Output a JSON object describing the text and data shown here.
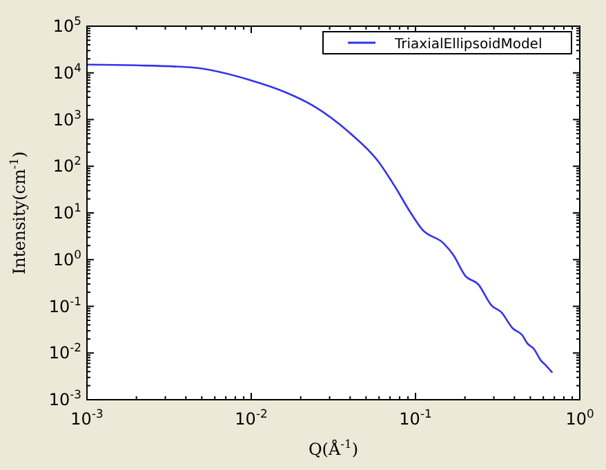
{
  "chart_data": {
    "type": "line",
    "xlabel": "Q(Å$^{-1}$)",
    "ylabel": "Intensity(cm$^{-1}$)",
    "log": "xy",
    "legend": "top right",
    "line_style": "solid",
    "marker": "none",
    "grid": false,
    "xlim": [
      0.001,
      1
    ],
    "ylim": [
      0.001,
      100000
    ],
    "xticks": [
      {
        "value": 0.001,
        "label": "10$^{-3}$"
      },
      {
        "value": 0.01,
        "label": "10$^{-2}$"
      },
      {
        "value": 0.1,
        "label": "10$^{-1}$"
      },
      {
        "value": 1,
        "label": "10$^{0}$"
      }
    ],
    "yticks": [
      {
        "value": 0.001,
        "label": "10$^{-3}$"
      },
      {
        "value": 0.01,
        "label": "10$^{-2}$"
      },
      {
        "value": 0.1,
        "label": "10$^{-1}$"
      },
      {
        "value": 1,
        "label": "10$^{0}$"
      },
      {
        "value": 10,
        "label": "10$^{1}$"
      },
      {
        "value": 100,
        "label": "10$^{2}$"
      },
      {
        "value": 1000,
        "label": "10$^{3}$"
      },
      {
        "value": 10000,
        "label": "10$^{4}$"
      },
      {
        "value": 100000,
        "label": "10$^{5}$"
      }
    ],
    "series": [
      {
        "name": "TriaxialEllipsoidModel",
        "color": "#3333ee",
        "x": [
          0.001,
          0.002,
          0.0044,
          0.01,
          0.016,
          0.0237,
          0.04,
          0.059,
          0.076,
          0.092,
          0.11,
          0.149,
          0.17,
          0.2,
          0.242,
          0.29,
          0.334,
          0.39,
          0.447,
          0.48,
          0.525,
          0.58,
          0.62,
          0.68
        ],
        "values": [
          15000,
          14500,
          13000,
          6900,
          3900,
          2000,
          510,
          130,
          34,
          11,
          4.4,
          2.2,
          1.26,
          0.46,
          0.29,
          0.105,
          0.074,
          0.034,
          0.024,
          0.016,
          0.0123,
          0.0069,
          0.0055,
          0.0038
        ]
      }
    ]
  }
}
